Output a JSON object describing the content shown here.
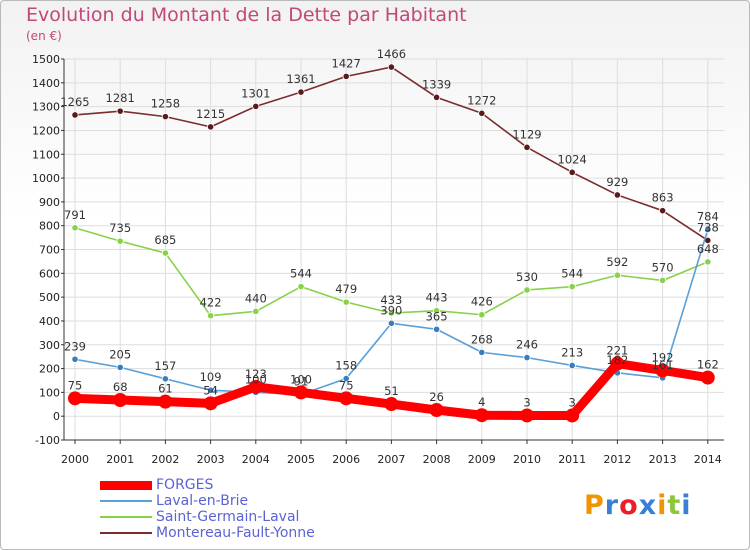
{
  "title": "Evolution du Montant de la Dette par Habitant",
  "unit": "(en €)",
  "logo": {
    "text": "Proxiti",
    "letter_colors": [
      "#f29400",
      "#3a7fd5",
      "#e9202b",
      "#3a7fd5",
      "#f29400",
      "#8cc63f",
      "#3a7fd5"
    ]
  },
  "chart_data": {
    "type": "line",
    "x": [
      "2000",
      "2001",
      "2002",
      "2003",
      "2004",
      "2005",
      "2006",
      "2007",
      "2008",
      "2009",
      "2010",
      "2011",
      "2012",
      "2013",
      "2014"
    ],
    "ylim": [
      -100,
      1500
    ],
    "yticks": [
      -100,
      0,
      100,
      200,
      300,
      400,
      500,
      600,
      700,
      800,
      900,
      1000,
      1100,
      1200,
      1300,
      1400,
      1500
    ],
    "grid": true,
    "legend": "bottom-left",
    "series": [
      {
        "name": "Montereau-Fault-Yonne",
        "color": "#7b2c2c",
        "values": [
          1265,
          1281,
          1258,
          1215,
          1301,
          1361,
          1427,
          1466,
          1339,
          1272,
          1129,
          1024,
          929,
          863,
          738
        ]
      },
      {
        "name": "Saint-Germain-Laval",
        "color": "#88d24a",
        "values": [
          791,
          735,
          685,
          422,
          440,
          544,
          479,
          433,
          443,
          426,
          530,
          544,
          592,
          570,
          648
        ]
      },
      {
        "name": "Laval-en-Brie",
        "color": "#5aa0d8",
        "values": [
          239,
          205,
          157,
          109,
          100,
          91,
          158,
          390,
          365,
          268,
          246,
          213,
          182,
          161,
          784
        ]
      },
      {
        "name": "FORGES",
        "color": "#ff0000",
        "values": [
          75,
          68,
          61,
          54,
          123,
          100,
          75,
          51,
          26,
          4,
          3,
          3,
          221,
          192,
          162
        ]
      }
    ],
    "legend_order": [
      "FORGES",
      "Laval-en-Brie",
      "Saint-Germain-Laval",
      "Montereau-Fault-Yonne"
    ]
  }
}
